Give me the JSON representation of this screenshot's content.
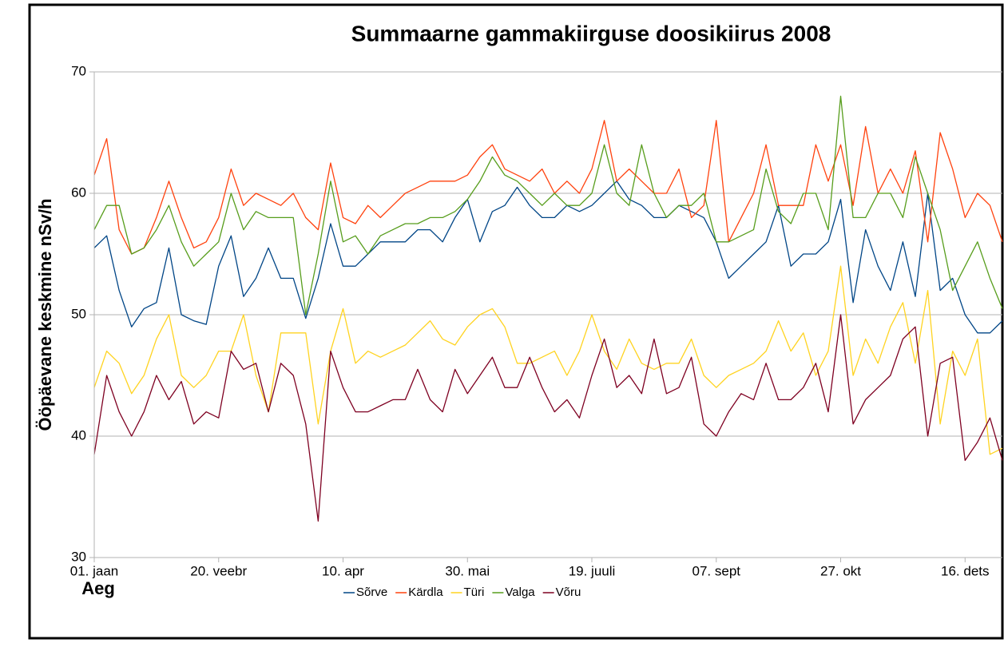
{
  "chart_data": {
    "type": "line",
    "title": "Summaarne gammakiirguse doosikiirus 2008",
    "x_label": "Aeg",
    "y_label": "Ööpäevane keskmine nSv/h",
    "xlim": [
      0,
      365
    ],
    "xticks": [
      {
        "value": 0,
        "label": "01. jaan"
      },
      {
        "value": 50,
        "label": "20. veebr"
      },
      {
        "value": 100,
        "label": "10. apr"
      },
      {
        "value": 150,
        "label": "30. mai"
      },
      {
        "value": 200,
        "label": "19. juuli"
      },
      {
        "value": 250,
        "label": "07. sept"
      },
      {
        "value": 300,
        "label": "27. okt"
      },
      {
        "value": 350,
        "label": "16. dets"
      }
    ],
    "ylim": [
      30,
      70
    ],
    "yticks": [
      30,
      40,
      50,
      60,
      70
    ],
    "grid": true,
    "legend": "bottom",
    "x": [
      0,
      5,
      10,
      15,
      20,
      25,
      30,
      35,
      40,
      45,
      50,
      55,
      60,
      65,
      70,
      75,
      80,
      85,
      90,
      95,
      100,
      105,
      110,
      115,
      120,
      125,
      130,
      135,
      140,
      145,
      150,
      155,
      160,
      165,
      170,
      175,
      180,
      185,
      190,
      195,
      200,
      205,
      210,
      215,
      220,
      225,
      230,
      235,
      240,
      245,
      250,
      255,
      260,
      265,
      270,
      275,
      280,
      285,
      290,
      295,
      300,
      305,
      310,
      315,
      320,
      325,
      330,
      335,
      340,
      345,
      350,
      355,
      360,
      365
    ],
    "series": [
      {
        "name": "Sõrve",
        "color": "#004586",
        "values": [
          55.5,
          56.5,
          52,
          49,
          50.5,
          51,
          55.5,
          50,
          49.5,
          49.2,
          54,
          56.5,
          51.5,
          53,
          55.5,
          53,
          53,
          49.7,
          53,
          57.5,
          54,
          54,
          55,
          56,
          56,
          56,
          57,
          57,
          56,
          58,
          59.5,
          56,
          58.5,
          59,
          60.5,
          59,
          58,
          58,
          59,
          58.5,
          59,
          60,
          61,
          59.5,
          59,
          58,
          58,
          59,
          58.5,
          58,
          56,
          53,
          54,
          55,
          56,
          59,
          54,
          55,
          55,
          56,
          59.5,
          51,
          57,
          54,
          52,
          56,
          51.5,
          60,
          52,
          53,
          50,
          48.5,
          48.5,
          49.5
        ]
      },
      {
        "name": "Kärdla",
        "color": "#ff420e",
        "values": [
          61.5,
          64.5,
          57,
          55,
          55.5,
          58,
          61,
          58,
          55.5,
          56,
          58,
          62,
          59,
          60,
          59.5,
          59,
          60,
          58,
          57,
          62.5,
          58,
          57.5,
          59,
          58,
          59,
          60,
          60.5,
          61,
          61,
          61,
          61.5,
          63,
          64,
          62,
          61.5,
          61,
          62,
          60,
          61,
          60,
          62,
          66,
          61,
          62,
          61,
          60,
          60,
          62,
          58,
          59,
          66,
          56,
          58,
          60,
          64,
          59,
          59,
          59,
          64,
          61,
          64,
          59,
          65.5,
          60,
          62,
          60,
          63.5,
          56,
          65,
          62,
          58,
          60,
          59,
          56
        ]
      },
      {
        "name": "Türi",
        "color": "#ffd320",
        "values": [
          44,
          47,
          46,
          43.5,
          45,
          48,
          50,
          45,
          44,
          45,
          47,
          47,
          50,
          45,
          42,
          48.5,
          48.5,
          48.5,
          41,
          47,
          50.5,
          46,
          47,
          46.5,
          47,
          47.5,
          48.5,
          49.5,
          48,
          47.5,
          49,
          50,
          50.5,
          49,
          46,
          46,
          46.5,
          47,
          45,
          47,
          50,
          47,
          45.5,
          48,
          46,
          45.5,
          46,
          46,
          48,
          45,
          44,
          45,
          45.5,
          46,
          47,
          49.5,
          47,
          48.5,
          45,
          47,
          54,
          45,
          48,
          46,
          49,
          51,
          46,
          52,
          41,
          47,
          45,
          48,
          38.5,
          39
        ]
      },
      {
        "name": "Valga",
        "color": "#579d1c",
        "values": [
          57,
          59,
          59,
          55,
          55.5,
          57,
          59,
          56,
          54,
          55,
          56,
          60,
          57,
          58.5,
          58,
          58,
          58,
          50,
          55,
          61,
          56,
          56.5,
          55,
          56.5,
          57,
          57.5,
          57.5,
          58,
          58,
          58.5,
          59.5,
          61,
          63,
          61.5,
          61,
          60,
          59,
          60,
          59,
          59,
          60,
          64,
          60,
          59,
          64,
          60,
          58,
          59,
          59,
          60,
          56,
          56,
          56.5,
          57,
          62,
          58.5,
          57.5,
          60,
          60,
          57,
          68,
          58,
          58,
          60,
          60,
          58,
          63,
          60,
          57,
          52,
          54,
          56,
          53,
          50.5
        ]
      },
      {
        "name": "Võru",
        "color": "#7e0021",
        "values": [
          38.5,
          45,
          42,
          40,
          42,
          45,
          43,
          44.5,
          41,
          42,
          41.5,
          47,
          45.5,
          46,
          42,
          46,
          45,
          41,
          33,
          47,
          44,
          42,
          42,
          42.5,
          43,
          43,
          45.5,
          43,
          42,
          45.5,
          43.5,
          45,
          46.5,
          44,
          44,
          46.5,
          44,
          42,
          43,
          41.5,
          45,
          48,
          44,
          45,
          43.5,
          48,
          43.5,
          44,
          46.5,
          41,
          40,
          42,
          43.5,
          43,
          46,
          43,
          43,
          44,
          46,
          42,
          50,
          41,
          43,
          44,
          45,
          48,
          49,
          40,
          46,
          46.5,
          38,
          39.5,
          41.5,
          38
        ]
      }
    ]
  }
}
